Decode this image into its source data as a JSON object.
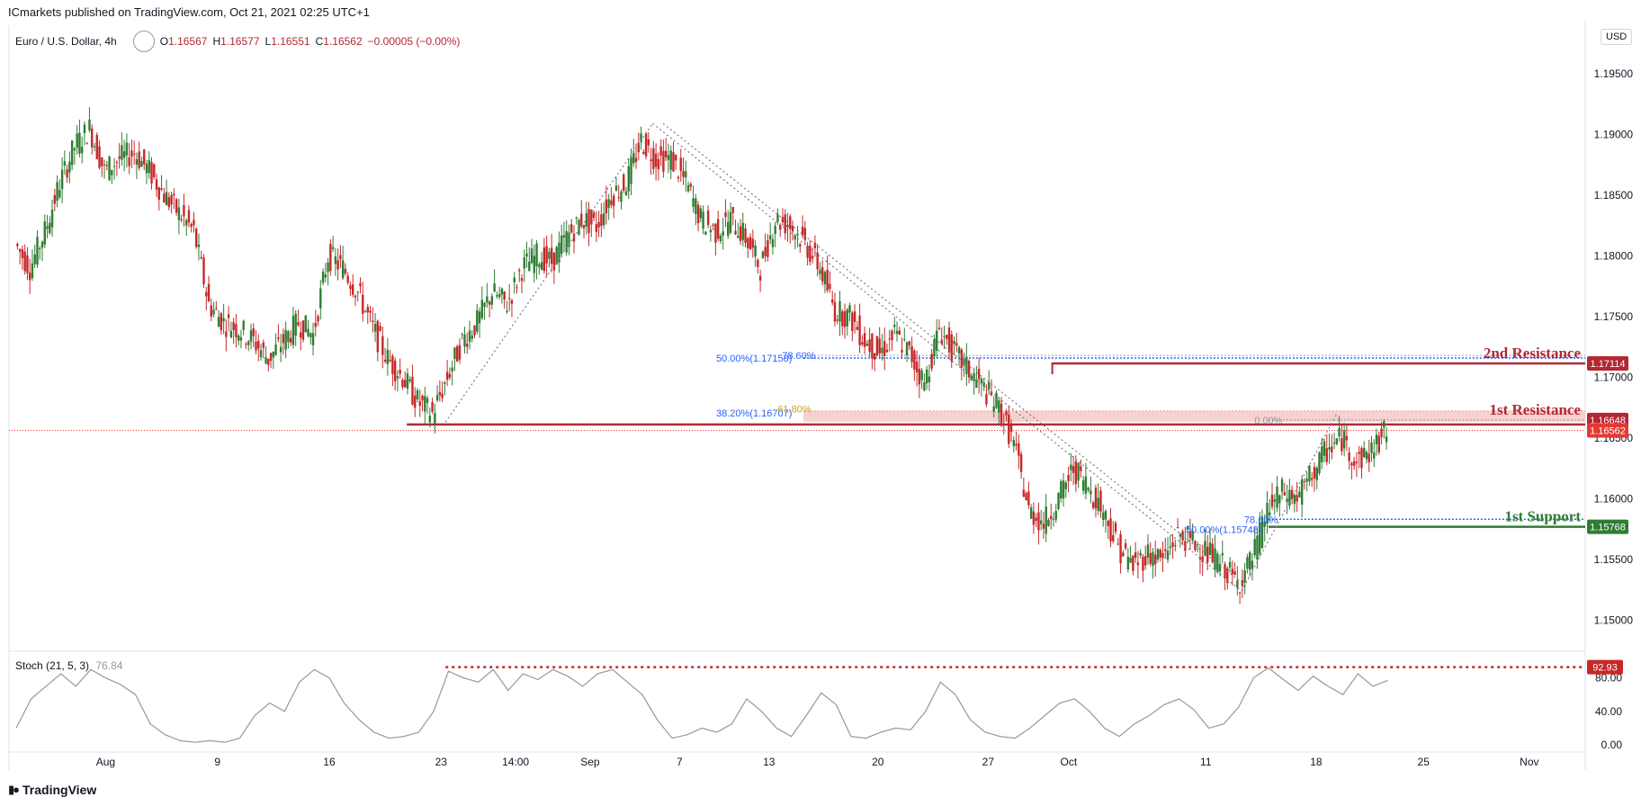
{
  "header": {
    "published": "ICmarkets published on TradingView.com, Oct 21, 2021 02:25 UTC+1",
    "symbol": "Euro / U.S. Dollar, 4h",
    "open_label": "O",
    "open": "1.16567",
    "high_label": "H",
    "high": "1.16577",
    "low_label": "L",
    "low": "1.16551",
    "close_label": "C",
    "close": "1.16562",
    "change": "−0.00005 (−0.00%)",
    "currency": "USD"
  },
  "stoch": {
    "label": "Stoch (21, 5, 3)",
    "value": "76.84"
  },
  "footer": {
    "brand": "TradingView",
    "logo_icon": "tradingview-logo-icon"
  },
  "colors": {
    "bull": "#26a69a",
    "bull_body": "#2e7d32",
    "bear": "#c62828",
    "resistance": "#b22833",
    "support": "#2e7d32",
    "fib": "#2962ff",
    "zone": "#f5c4c4",
    "stoch_line": "#9598a1",
    "price_dotted": "#e53935"
  },
  "chart_data": {
    "type": "candlestick",
    "symbol": "EURUSD",
    "timeframe": "4h",
    "y_axis": {
      "range": [
        1.1475,
        1.199
      ],
      "ticks": [
        "1.19500",
        "1.19000",
        "1.18500",
        "1.18000",
        "1.17500",
        "1.17000",
        "1.16500",
        "1.16000",
        "1.15500",
        "1.15000"
      ]
    },
    "x_axis": {
      "range_index": [
        0,
        100
      ],
      "ticks": [
        {
          "label": "Aug",
          "i": 6
        },
        {
          "label": "9",
          "i": 13.5
        },
        {
          "label": "16",
          "i": 21
        },
        {
          "label": "23",
          "i": 28.5
        },
        {
          "label": "14:00",
          "i": 33.5
        },
        {
          "label": "Sep",
          "i": 38.5
        },
        {
          "label": "7",
          "i": 44.5
        },
        {
          "label": "13",
          "i": 50.5
        },
        {
          "label": "20",
          "i": 57.8
        },
        {
          "label": "27",
          "i": 65.2
        },
        {
          "label": "Oct",
          "i": 70.6
        },
        {
          "label": "11",
          "i": 79.8
        },
        {
          "label": "18",
          "i": 87.2
        },
        {
          "label": "25",
          "i": 94.4
        },
        {
          "label": "Nov",
          "i": 101.5
        }
      ]
    },
    "close_path": [
      [
        0,
        1.181
      ],
      [
        1,
        1.179
      ],
      [
        2,
        1.182
      ],
      [
        3,
        1.186
      ],
      [
        4,
        1.189
      ],
      [
        5,
        1.1905
      ],
      [
        6,
        1.187
      ],
      [
        7,
        1.188
      ],
      [
        8,
        1.1885
      ],
      [
        9,
        1.187
      ],
      [
        10,
        1.185
      ],
      [
        11,
        1.1835
      ],
      [
        12,
        1.182
      ],
      [
        13,
        1.176
      ],
      [
        14,
        1.1745
      ],
      [
        15,
        1.174
      ],
      [
        16,
        1.173
      ],
      [
        17,
        1.1715
      ],
      [
        18,
        1.173
      ],
      [
        19,
        1.1745
      ],
      [
        20,
        1.1735
      ],
      [
        21,
        1.18
      ],
      [
        22,
        1.179
      ],
      [
        23,
        1.177
      ],
      [
        24,
        1.174
      ],
      [
        25,
        1.1715
      ],
      [
        26,
        1.17
      ],
      [
        27,
        1.168
      ],
      [
        28,
        1.167
      ],
      [
        29,
        1.17
      ],
      [
        30,
        1.173
      ],
      [
        31,
        1.1745
      ],
      [
        32,
        1.177
      ],
      [
        33,
        1.176
      ],
      [
        34,
        1.179
      ],
      [
        35,
        1.18
      ],
      [
        36,
        1.1795
      ],
      [
        37,
        1.1815
      ],
      [
        38,
        1.183
      ],
      [
        39,
        1.1825
      ],
      [
        40,
        1.185
      ],
      [
        41,
        1.186
      ],
      [
        42,
        1.1895
      ],
      [
        43,
        1.188
      ],
      [
        44,
        1.188
      ],
      [
        45,
        1.186
      ],
      [
        46,
        1.183
      ],
      [
        47,
        1.182
      ],
      [
        48,
        1.183
      ],
      [
        49,
        1.1815
      ],
      [
        50,
        1.179
      ],
      [
        51,
        1.183
      ],
      [
        52,
        1.1825
      ],
      [
        53,
        1.181
      ],
      [
        54,
        1.179
      ],
      [
        55,
        1.1755
      ],
      [
        56,
        1.175
      ],
      [
        57,
        1.173
      ],
      [
        58,
        1.172
      ],
      [
        59,
        1.1735
      ],
      [
        60,
        1.172
      ],
      [
        61,
        1.1695
      ],
      [
        62,
        1.174
      ],
      [
        63,
        1.172
      ],
      [
        64,
        1.1705
      ],
      [
        65,
        1.169
      ],
      [
        66,
        1.1675
      ],
      [
        67,
        1.1645
      ],
      [
        68,
        1.159
      ],
      [
        69,
        1.158
      ],
      [
        70,
        1.16
      ],
      [
        71,
        1.1625
      ],
      [
        72,
        1.161
      ],
      [
        73,
        1.159
      ],
      [
        74,
        1.156
      ],
      [
        75,
        1.1545
      ],
      [
        76,
        1.1555
      ],
      [
        77,
        1.155
      ],
      [
        78,
        1.157
      ],
      [
        79,
        1.1565
      ],
      [
        80,
        1.1555
      ],
      [
        81,
        1.1545
      ],
      [
        82,
        1.153
      ],
      [
        83,
        1.155
      ],
      [
        84,
        1.159
      ],
      [
        85,
        1.1605
      ],
      [
        86,
        1.16
      ],
      [
        87,
        1.162
      ],
      [
        88,
        1.164
      ],
      [
        89,
        1.165
      ],
      [
        90,
        1.163
      ],
      [
        91,
        1.164
      ],
      [
        92,
        1.1656
      ]
    ],
    "key_points": {
      "swing_low_aug": 1.1663,
      "swing_high_sep": 1.1909,
      "swing_low_oct": 1.1524,
      "swing_high_oct": 1.167
    },
    "levels": [
      {
        "name": "2nd Resistance",
        "price": 1.17114,
        "label": "1.17114",
        "color": "#b22833"
      },
      {
        "name": "1st Resistance",
        "price": 1.16648,
        "label": "1.16648",
        "color": "#b22833"
      },
      {
        "name": "1st Support",
        "price": 1.15768,
        "label": "1.15768",
        "color": "#2e7d32"
      }
    ],
    "current_price": {
      "price": 1.16562,
      "label": "1.16562"
    },
    "resistance_zone": [
      1.16648,
      1.16707
    ],
    "fib_labels": [
      {
        "text": "50.00%(1.17158)",
        "price": 1.17158,
        "i": 49.5,
        "color": "#2962ff"
      },
      {
        "text": "78.60%",
        "price": 1.1718,
        "i": 52.5,
        "color": "#2962ff"
      },
      {
        "text": "38.20%(1.16707)",
        "price": 1.16707,
        "i": 49.5,
        "color": "#2962ff"
      },
      {
        "text": "61.80%",
        "price": 1.1674,
        "i": 52.2,
        "color": "#c9a227"
      },
      {
        "text": "0.00%",
        "price": 1.16648,
        "i": 84,
        "color": "#9598a1"
      },
      {
        "text": "78.60%",
        "price": 1.1583,
        "i": 83.5,
        "color": "#2962ff"
      },
      {
        "text": "50.00%(1.15748)",
        "price": 1.15748,
        "i": 81,
        "color": "#2962ff"
      }
    ],
    "level_texts": [
      {
        "text": "2nd Resistance",
        "price": 1.17114,
        "color": "#b22833"
      },
      {
        "text": "1st Resistance",
        "price": 1.16648,
        "color": "#b22833"
      },
      {
        "text": "1st Support",
        "price": 1.15768,
        "color": "#2e7d32"
      }
    ],
    "stochastic": {
      "range": [
        0,
        100
      ],
      "ticks": [
        "80.00",
        "40.00",
        "0.00"
      ],
      "tick_values": [
        80,
        40,
        0
      ],
      "overbought_marker": {
        "value": 92.93,
        "label": "92.93"
      },
      "k_values": [
        [
          0,
          20
        ],
        [
          1,
          55
        ],
        [
          2,
          70
        ],
        [
          3,
          85
        ],
        [
          4,
          70
        ],
        [
          5,
          90
        ],
        [
          6,
          80
        ],
        [
          7,
          72
        ],
        [
          8,
          60
        ],
        [
          9,
          25
        ],
        [
          10,
          12
        ],
        [
          11,
          5
        ],
        [
          12,
          3
        ],
        [
          13,
          5
        ],
        [
          14,
          3
        ],
        [
          15,
          8
        ],
        [
          16,
          35
        ],
        [
          17,
          50
        ],
        [
          18,
          40
        ],
        [
          19,
          75
        ],
        [
          20,
          90
        ],
        [
          21,
          80
        ],
        [
          22,
          50
        ],
        [
          23,
          30
        ],
        [
          24,
          15
        ],
        [
          25,
          8
        ],
        [
          26,
          10
        ],
        [
          27,
          15
        ],
        [
          28,
          40
        ],
        [
          29,
          88
        ],
        [
          30,
          80
        ],
        [
          31,
          75
        ],
        [
          32,
          90
        ],
        [
          33,
          65
        ],
        [
          34,
          85
        ],
        [
          35,
          78
        ],
        [
          36,
          90
        ],
        [
          37,
          82
        ],
        [
          38,
          70
        ],
        [
          39,
          85
        ],
        [
          40,
          90
        ],
        [
          41,
          75
        ],
        [
          42,
          60
        ],
        [
          43,
          30
        ],
        [
          44,
          8
        ],
        [
          45,
          12
        ],
        [
          46,
          20
        ],
        [
          47,
          15
        ],
        [
          48,
          25
        ],
        [
          49,
          55
        ],
        [
          50,
          40
        ],
        [
          51,
          20
        ],
        [
          52,
          10
        ],
        [
          53,
          35
        ],
        [
          54,
          62
        ],
        [
          55,
          48
        ],
        [
          56,
          10
        ],
        [
          57,
          8
        ],
        [
          58,
          15
        ],
        [
          59,
          20
        ],
        [
          60,
          18
        ],
        [
          61,
          40
        ],
        [
          62,
          75
        ],
        [
          63,
          60
        ],
        [
          64,
          30
        ],
        [
          65,
          15
        ],
        [
          66,
          10
        ],
        [
          67,
          8
        ],
        [
          68,
          20
        ],
        [
          69,
          35
        ],
        [
          70,
          50
        ],
        [
          71,
          55
        ],
        [
          72,
          40
        ],
        [
          73,
          20
        ],
        [
          74,
          10
        ],
        [
          75,
          25
        ],
        [
          76,
          35
        ],
        [
          77,
          48
        ],
        [
          78,
          55
        ],
        [
          79,
          42
        ],
        [
          80,
          20
        ],
        [
          81,
          25
        ],
        [
          82,
          45
        ],
        [
          83,
          80
        ],
        [
          84,
          92
        ],
        [
          85,
          78
        ],
        [
          86,
          65
        ],
        [
          87,
          82
        ],
        [
          88,
          70
        ],
        [
          89,
          60
        ],
        [
          90,
          85
        ],
        [
          91,
          70
        ],
        [
          92,
          77
        ]
      ]
    }
  }
}
